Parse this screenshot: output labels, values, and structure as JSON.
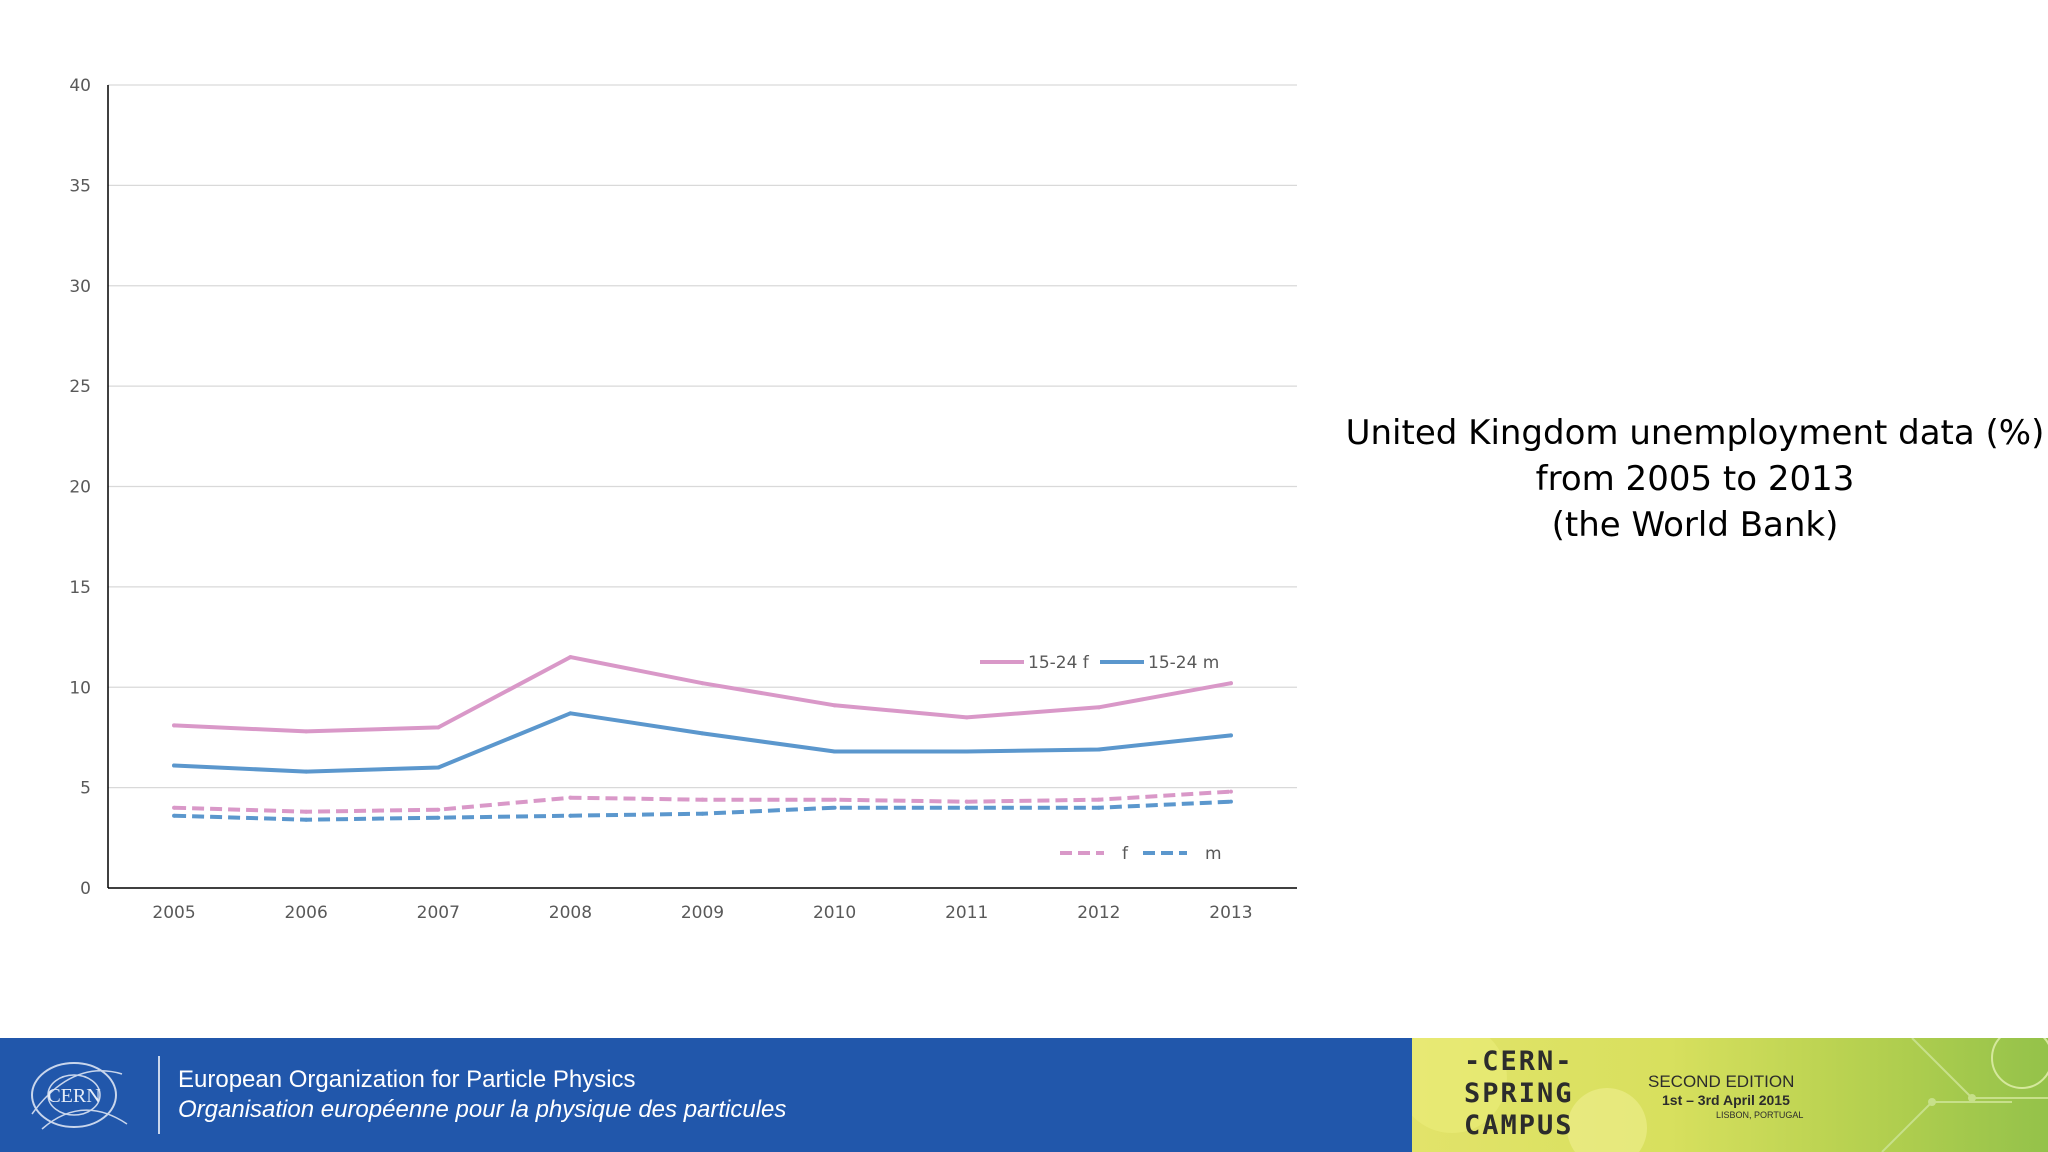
{
  "slide": {
    "title_lines": [
      "United Kingdom unemployment data (%)",
      "from 2005 to 2013",
      "(the World Bank)"
    ]
  },
  "chart_data": {
    "type": "line",
    "title": "United Kingdom unemployment data (%) from 2005 to 2013 (the World Bank)",
    "xlabel": "",
    "ylabel": "",
    "categories": [
      "2005",
      "2006",
      "2007",
      "2008",
      "2009",
      "2010",
      "2011",
      "2012",
      "2013"
    ],
    "ylim": [
      0,
      40
    ],
    "yticks": [
      0,
      5,
      10,
      15,
      20,
      25,
      30,
      35,
      40
    ],
    "grid": true,
    "series": [
      {
        "name": "15-24 f",
        "color": "#d998c8",
        "dashed": false,
        "values": [
          8.1,
          7.8,
          8.0,
          11.5,
          10.2,
          9.1,
          8.5,
          9.0,
          10.2
        ]
      },
      {
        "name": "15-24 m",
        "color": "#5b97cd",
        "dashed": false,
        "values": [
          6.1,
          5.8,
          6.0,
          8.7,
          7.7,
          6.8,
          6.8,
          6.9,
          7.6
        ]
      },
      {
        "name": "f",
        "color": "#d998c8",
        "dashed": true,
        "values": [
          4.0,
          3.8,
          3.9,
          4.5,
          4.4,
          4.4,
          4.3,
          4.4,
          4.8
        ]
      },
      {
        "name": "m",
        "color": "#5b97cd",
        "dashed": true,
        "values": [
          3.6,
          3.4,
          3.5,
          3.6,
          3.7,
          4.0,
          4.0,
          4.0,
          4.3
        ]
      }
    ],
    "legends": [
      {
        "position": "upper-right",
        "entries": [
          "15-24 f",
          "15-24 m"
        ]
      },
      {
        "position": "lower-right",
        "entries": [
          "f",
          "m"
        ]
      }
    ]
  },
  "footer": {
    "logo_text": "CERN",
    "org_en": "European Organization for Particle Physics",
    "org_fr": "Organisation européenne pour la physique des particules",
    "campus_lines": [
      "-CERN-",
      "SPRING",
      "CAMPUS"
    ],
    "edition": "SECOND EDITION",
    "dates": "1st – 3rd April 2015",
    "place": "LISBON, PORTUGAL"
  }
}
